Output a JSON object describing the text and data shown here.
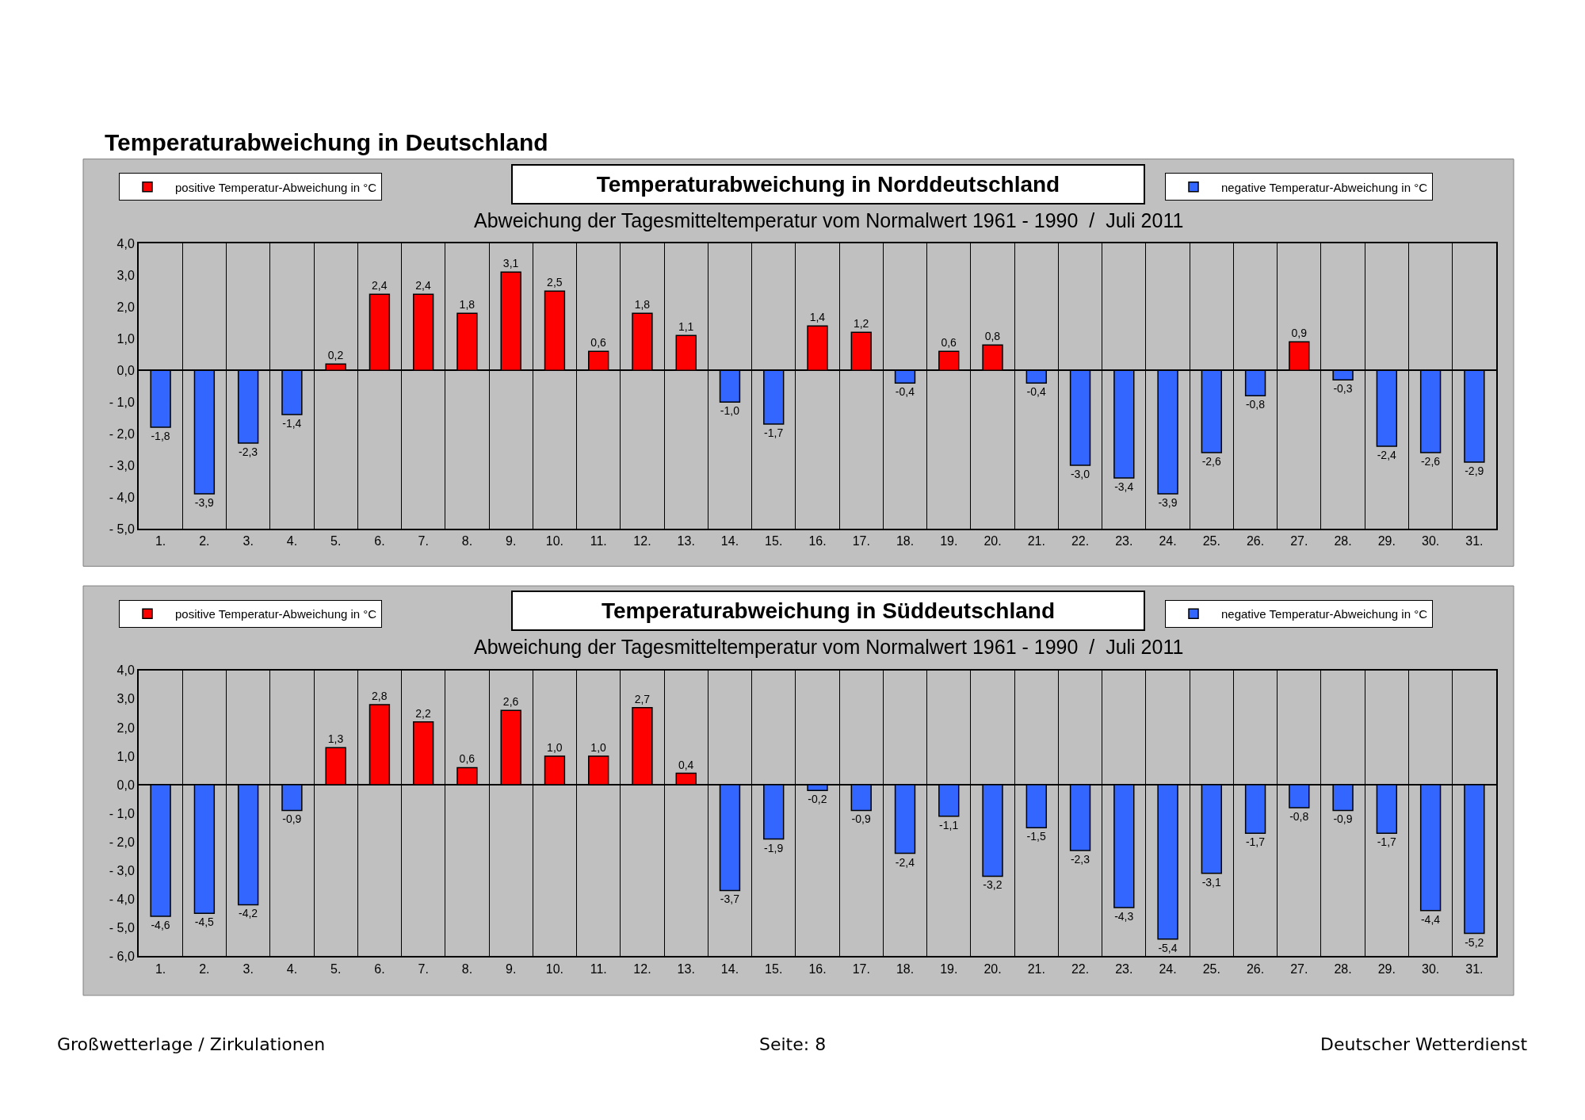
{
  "chart_data": [
    {
      "type": "bar",
      "title": "Temperaturabweichung in Norddeutschland",
      "subtitle": "Abweichung der Tagesmitteltemperatur vom Normalwert 1961 - 1990  /  Juli 2011",
      "annotations": [
        "Temperaturabweichung in Deutschland"
      ],
      "categories": [
        "1.",
        "2.",
        "3.",
        "4.",
        "5.",
        "6.",
        "7.",
        "8.",
        "9.",
        "10.",
        "11.",
        "12.",
        "13.",
        "14.",
        "15.",
        "16.",
        "17.",
        "18.",
        "19.",
        "20.",
        "21.",
        "22.",
        "23.",
        "24.",
        "25.",
        "26.",
        "27.",
        "28.",
        "29.",
        "30.",
        "31."
      ],
      "series": [
        {
          "name": "positive Temperatur-Abweichung in °C",
          "color": "#ff0000",
          "values": [
            null,
            null,
            null,
            null,
            0.2,
            2.4,
            2.4,
            1.8,
            3.1,
            2.5,
            0.6,
            1.8,
            1.1,
            null,
            null,
            1.4,
            1.2,
            null,
            0.6,
            0.8,
            null,
            null,
            null,
            null,
            null,
            null,
            0.9,
            null,
            null,
            null,
            null
          ],
          "value_labels": [
            null,
            null,
            null,
            null,
            "0,2",
            "2,4",
            "2,4",
            "1,8",
            "3,1",
            "2,5",
            "0,6",
            "1,8",
            "1,1",
            null,
            null,
            "1,4",
            "1,2",
            null,
            "0,6",
            "0,8",
            null,
            null,
            null,
            null,
            null,
            null,
            "0,9",
            null,
            null,
            null,
            null
          ]
        },
        {
          "name": "negative Temperatur-Abweichung in °C",
          "color": "#3366ff",
          "values": [
            -1.8,
            -3.9,
            -2.3,
            -1.4,
            null,
            null,
            null,
            null,
            null,
            null,
            null,
            null,
            null,
            -1.0,
            -1.7,
            null,
            null,
            -0.4,
            null,
            null,
            -0.4,
            -3.0,
            -3.4,
            -3.9,
            -2.6,
            -0.8,
            null,
            -0.3,
            -2.4,
            -2.6,
            -2.9
          ],
          "value_labels": [
            "-1,8",
            "-3,9",
            "-2,3",
            "-1,4",
            null,
            null,
            null,
            null,
            null,
            null,
            null,
            null,
            null,
            "-1,0",
            "-1,7",
            null,
            null,
            "-0,4",
            null,
            null,
            "-0,4",
            "-3,0",
            "-3,4",
            "-3,9",
            "-2,6",
            "-0,8",
            null,
            "-0,3",
            "-2,4",
            "-2,6",
            "-2,9"
          ]
        }
      ],
      "ylim": [
        -5,
        4
      ],
      "yticks": [
        {
          "value": -5,
          "label": "- 5,0"
        },
        {
          "value": -4,
          "label": "- 4,0"
        },
        {
          "value": -3,
          "label": "- 3,0"
        },
        {
          "value": -2,
          "label": "- 2,0"
        },
        {
          "value": -1,
          "label": "- 1,0"
        },
        {
          "value": 0,
          "label": "0,0"
        },
        {
          "value": 1,
          "label": "1,0"
        },
        {
          "value": 2,
          "label": "2,0"
        },
        {
          "value": 3,
          "label": "3,0"
        },
        {
          "value": 4,
          "label": "4,0"
        }
      ],
      "grid": "x",
      "legend": "top"
    },
    {
      "type": "bar",
      "title": "Temperaturabweichung in Süddeutschland",
      "subtitle": "Abweichung der Tagesmitteltemperatur vom Normalwert 1961 - 1990  /  Juli 2011",
      "annotations": [
        "Großwetterlage / Zirkulationen",
        "Seite: 8",
        "Deutscher Wetterdienst"
      ],
      "categories": [
        "1.",
        "2.",
        "3.",
        "4.",
        "5.",
        "6.",
        "7.",
        "8.",
        "9.",
        "10.",
        "11.",
        "12.",
        "13.",
        "14.",
        "15.",
        "16.",
        "17.",
        "18.",
        "19.",
        "20.",
        "21.",
        "22.",
        "23.",
        "24.",
        "25.",
        "26.",
        "27.",
        "28.",
        "29.",
        "30.",
        "31."
      ],
      "series": [
        {
          "name": "positive Temperatur-Abweichung in °C",
          "color": "#ff0000",
          "values": [
            null,
            null,
            null,
            null,
            1.3,
            2.8,
            2.2,
            0.6,
            2.6,
            1.0,
            1.0,
            2.7,
            0.4,
            null,
            null,
            null,
            null,
            null,
            null,
            null,
            null,
            null,
            null,
            null,
            null,
            null,
            null,
            null,
            null,
            null,
            null
          ],
          "value_labels": [
            null,
            null,
            null,
            null,
            "1,3",
            "2,8",
            "2,2",
            "0,6",
            "2,6",
            "1,0",
            "1,0",
            "2,7",
            "0,4",
            null,
            null,
            null,
            null,
            null,
            null,
            null,
            null,
            null,
            null,
            null,
            null,
            null,
            null,
            null,
            null,
            null,
            null
          ]
        },
        {
          "name": "negative Temperatur-Abweichung in °C",
          "color": "#3366ff",
          "values": [
            -4.6,
            -4.5,
            -4.2,
            -0.9,
            null,
            null,
            null,
            null,
            null,
            null,
            null,
            null,
            null,
            -3.7,
            -1.9,
            -0.2,
            -0.9,
            -2.4,
            -1.1,
            -3.2,
            -1.5,
            -2.3,
            -4.3,
            -5.4,
            -3.1,
            -1.7,
            -0.8,
            -0.9,
            -1.7,
            -4.4,
            -5.2
          ],
          "value_labels": [
            "-4,6",
            "-4,5",
            "-4,2",
            "-0,9",
            null,
            null,
            null,
            null,
            null,
            null,
            null,
            null,
            null,
            "-3,7",
            "-1,9",
            "-0,2",
            "-0,9",
            "-2,4",
            "-1,1",
            "-3,2",
            "-1,5",
            "-2,3",
            "-4,3",
            "-5,4",
            "-3,1",
            "-1,7",
            "-0,8",
            "-0,9",
            "-1,7",
            "-4,4",
            "-5,2"
          ]
        }
      ],
      "ylim": [
        -6,
        4
      ],
      "yticks": [
        {
          "value": -6,
          "label": "- 6,0"
        },
        {
          "value": -5,
          "label": "- 5,0"
        },
        {
          "value": -4,
          "label": "- 4,0"
        },
        {
          "value": -3,
          "label": "- 3,0"
        },
        {
          "value": -2,
          "label": "- 2,0"
        },
        {
          "value": -1,
          "label": "- 1,0"
        },
        {
          "value": 0,
          "label": "0,0"
        },
        {
          "value": 1,
          "label": "1,0"
        },
        {
          "value": 2,
          "label": "2,0"
        },
        {
          "value": 3,
          "label": "3,0"
        },
        {
          "value": 4,
          "label": "4,0"
        }
      ],
      "grid": "x",
      "legend": "top"
    }
  ]
}
